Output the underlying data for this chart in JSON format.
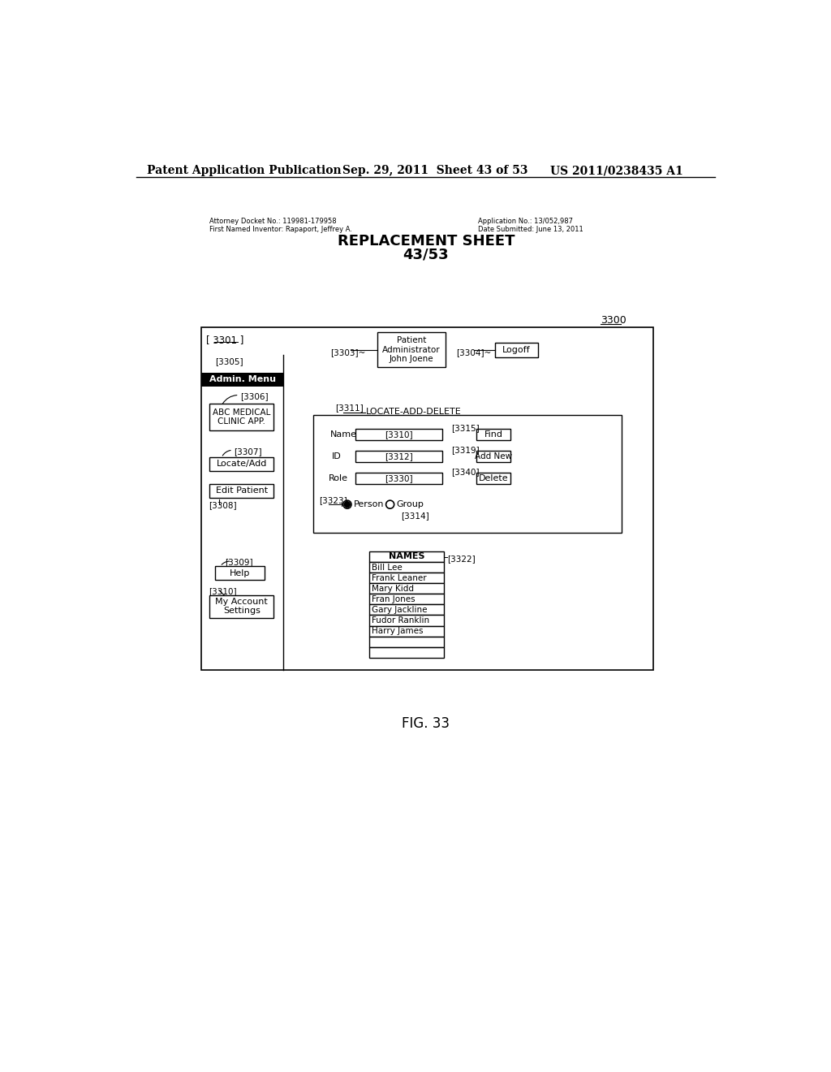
{
  "bg_color": "#ffffff",
  "header_line1": "Patent Application Publication",
  "header_date": "Sep. 29, 2011  Sheet 43 of 53",
  "header_patent": "US 2011/0238435 A1",
  "docket_line1": "Attorney Docket No.: 119981-179958",
  "docket_line2": "First Named Inventor: Rapaport, Jeffrey A.",
  "app_line1": "Application No.: 13/052,987",
  "app_line2": "Date Submitted: June 13, 2011",
  "replacement_sheet": "REPLACEMENT SHEET",
  "replacement_num": "43/53",
  "fig_label": "FIG. 33",
  "diagram_ref": "3300",
  "outer_box_label": "[ 3301 ]",
  "ref_3305": "[3305]",
  "ref_3303": "[3303]~",
  "ref_3304": "[3304]~",
  "patient_box_text": "Patient\nAdministrator\nJohn Joene",
  "logoff_text": "Logoff",
  "admin_menu_text": "Admin. Menu",
  "ref_3306": "[3306]",
  "abc_text": "ABC MEDICAL\nCLINIC APP.",
  "ref_3307": "[3307]",
  "locateadd_text": "Locate/Add",
  "edit_patient_text": "Edit Patient",
  "ref_3308": "[3308]",
  "ref_3309": "[3309]",
  "help_text": "Help",
  "ref_3310_sidebar": "[3310]",
  "my_account_text": "My Account\nSettings",
  "ref_3311": "[3311]",
  "locate_add_delete": "LOCATE-ADD-DELETE",
  "name_label": "Name",
  "ref_3310b": "[3310]",
  "id_label": "ID",
  "ref_3312": "[3312]",
  "role_label": "Role",
  "ref_3330": "[3330]",
  "ref_3315": "[3315]",
  "find_text": "Find",
  "ref_3319": "[3319]",
  "add_new_text": "Add New",
  "ref_3340": "[3340]",
  "delete_text": "Delete",
  "ref_3323": "[3323]",
  "person_text": "Person",
  "group_text": "Group",
  "ref_3314": "[3314]",
  "ref_3322": "[3322]",
  "names_header": "NAMES",
  "names_list": [
    "Bill Lee",
    "Frank Leaner",
    "Mary Kidd",
    "Fran Jones",
    "Gary Jackline",
    "Fudor Ranklin",
    "Harry James",
    "",
    ""
  ]
}
